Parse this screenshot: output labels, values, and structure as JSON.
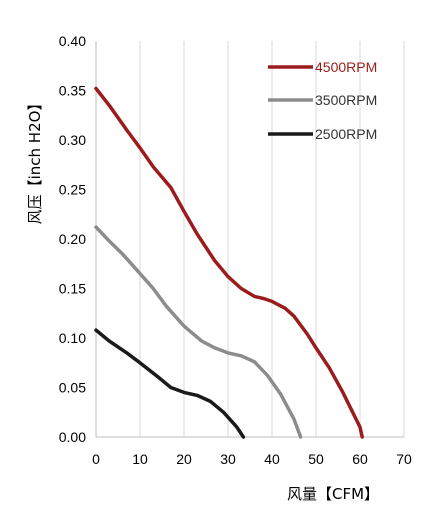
{
  "chart_data": {
    "type": "line",
    "title": "",
    "xlabel": "风量【CFM】",
    "ylabel": "风压【inch H2O】",
    "xlim": [
      0,
      70
    ],
    "ylim": [
      0,
      0.4
    ],
    "x_ticks": [
      "0",
      "10",
      "20",
      "30",
      "40",
      "50",
      "60",
      "70"
    ],
    "y_ticks": [
      "0.00",
      "0.05",
      "0.10",
      "0.15",
      "0.20",
      "0.25",
      "0.30",
      "0.35",
      "0.40"
    ],
    "grid": "vertical",
    "legend_position": "top-right",
    "series": [
      {
        "name": "4500RPM",
        "color": "#9b1c1c",
        "x": [
          0,
          3,
          7,
          10,
          13,
          17,
          20,
          23,
          27,
          30,
          33,
          36,
          38,
          40,
          43,
          45,
          48,
          50,
          53,
          56,
          58,
          60,
          60.5
        ],
        "y": [
          0.352,
          0.335,
          0.31,
          0.292,
          0.273,
          0.252,
          0.228,
          0.205,
          0.178,
          0.162,
          0.15,
          0.142,
          0.14,
          0.137,
          0.13,
          0.122,
          0.104,
          0.09,
          0.07,
          0.046,
          0.028,
          0.01,
          0.0
        ]
      },
      {
        "name": "3500RPM",
        "color": "#8c8c8c",
        "x": [
          0,
          3,
          6,
          10,
          13,
          16,
          20,
          24,
          27,
          30,
          33,
          36,
          39,
          42,
          45,
          46.5
        ],
        "y": [
          0.212,
          0.198,
          0.185,
          0.165,
          0.15,
          0.132,
          0.112,
          0.097,
          0.09,
          0.085,
          0.082,
          0.076,
          0.062,
          0.043,
          0.018,
          0.0
        ]
      },
      {
        "name": "2500RPM",
        "color": "#1a1a1a",
        "x": [
          0,
          3,
          7,
          10,
          14,
          17,
          20,
          23,
          26,
          29,
          32,
          33.5
        ],
        "y": [
          0.108,
          0.097,
          0.085,
          0.075,
          0.061,
          0.05,
          0.045,
          0.042,
          0.036,
          0.025,
          0.01,
          0.0
        ]
      }
    ]
  }
}
